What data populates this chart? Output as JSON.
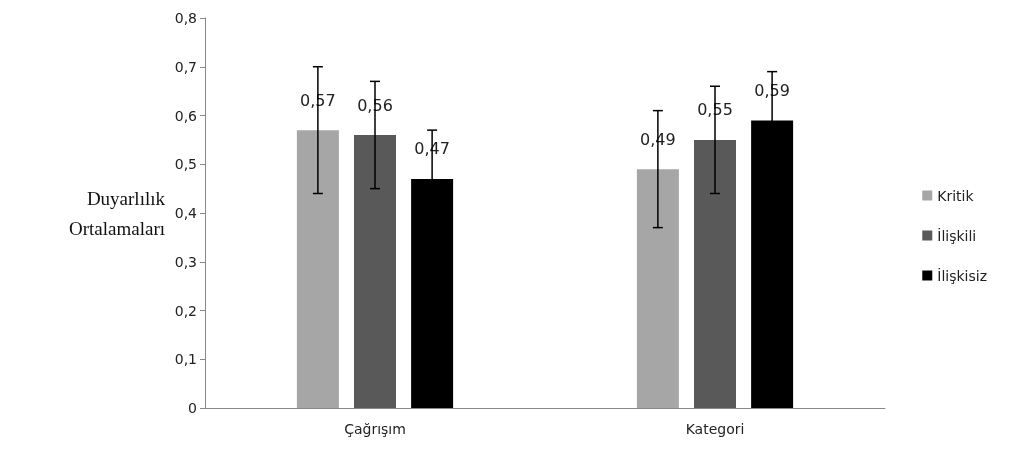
{
  "chart_data": {
    "type": "bar",
    "ylabel": "Duyarlılık\nOrtalamaları",
    "categories": [
      "Çağrışım",
      "Kategori"
    ],
    "series": [
      {
        "name": "Kritik",
        "color": "#a6a6a6",
        "values": [
          0.57,
          0.49
        ],
        "errors": [
          0.13,
          0.12
        ],
        "value_labels": [
          "0,57",
          "0,49"
        ]
      },
      {
        "name": "İlişkili",
        "color": "#595959",
        "values": [
          0.56,
          0.55
        ],
        "errors": [
          0.11,
          0.11
        ],
        "value_labels": [
          "0,56",
          "0,55"
        ]
      },
      {
        "name": "İlişkisiz",
        "color": "#000000",
        "values": [
          0.47,
          0.59
        ],
        "errors": [
          0.1,
          0.1
        ],
        "value_labels": [
          "0,47",
          "0,59"
        ]
      }
    ],
    "ylim": [
      0,
      0.8
    ],
    "yticks": [
      0,
      {
        "value": 0.1,
        "label": "0,1"
      },
      {
        "value": 0.2,
        "label": "0,2"
      },
      {
        "value": 0.3,
        "label": "0,3"
      },
      {
        "value": 0.4,
        "label": "0,4"
      },
      {
        "value": 0.5,
        "label": "0,5"
      },
      {
        "value": 0.6,
        "label": "0,6"
      },
      {
        "value": 0.7,
        "label": "0,7"
      },
      {
        "value": 0.8,
        "label": "0,8"
      }
    ],
    "grid": false,
    "legend": "right"
  }
}
